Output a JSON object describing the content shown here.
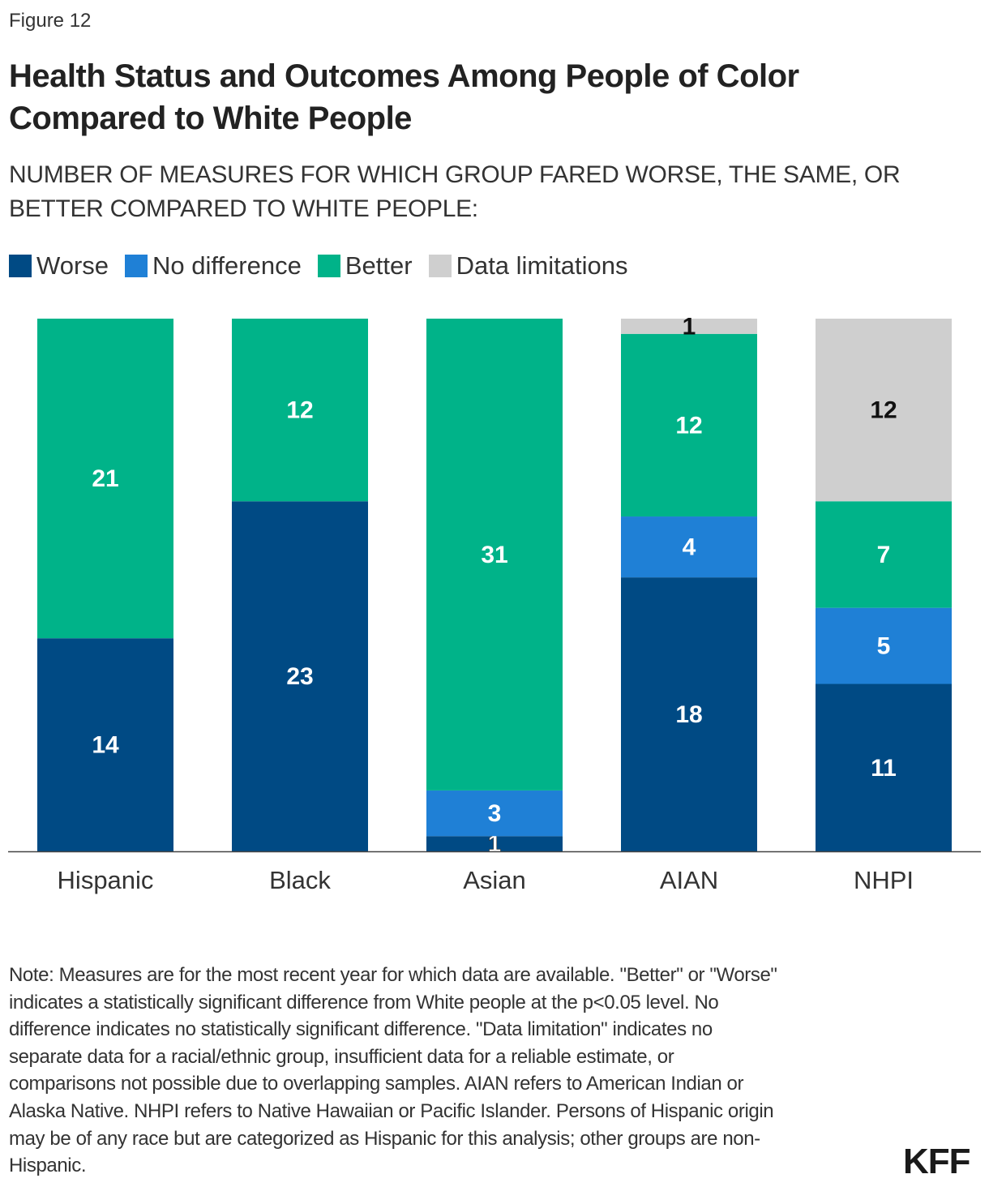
{
  "figure_label": "Figure 12",
  "chart_data": {
    "type": "bar",
    "stacked": true,
    "title": "Health Status and Outcomes Among People of Color Compared to White People",
    "subtitle": "NUMBER OF MEASURES FOR WHICH GROUP FARED WORSE, THE SAME, OR BETTER COMPARED TO WHITE PEOPLE:",
    "categories": [
      "Hispanic",
      "Black",
      "Asian",
      "AIAN",
      "NHPI"
    ],
    "series": [
      {
        "name": "Worse",
        "color": "#004a84",
        "values": [
          14,
          23,
          1,
          18,
          11
        ]
      },
      {
        "name": "No difference",
        "color": "#1f80d6",
        "values": [
          0,
          0,
          3,
          4,
          5
        ]
      },
      {
        "name": "Better",
        "color": "#00b389",
        "values": [
          21,
          12,
          31,
          12,
          7
        ]
      },
      {
        "name": "Data limitations",
        "color": "#cfcfcf",
        "values": [
          0,
          0,
          0,
          1,
          12
        ]
      }
    ],
    "ylim": [
      0,
      35
    ],
    "grid": false,
    "legend": "top-left",
    "data_labels": true
  },
  "note_lines": [
    "Note: Measures are for the most recent year for which data are available. \"Better\" or \"Worse\"",
    "indicates a statistically significant difference from White people at the p<0.05 level. No",
    "difference indicates no statistically significant difference. \"Data limitation\" indicates no",
    "separate data for a racial/ethnic group, insufficient data for a reliable estimate, or",
    "comparisons not possible due to overlapping samples. AIAN refers to American Indian or",
    "Alaska Native. NHPI refers to Native Hawaiian or Pacific Islander. Persons of Hispanic origin",
    "may be of any race but are categorized as Hispanic for this analysis; other groups are non-",
    "Hispanic."
  ],
  "logo": "KFF"
}
